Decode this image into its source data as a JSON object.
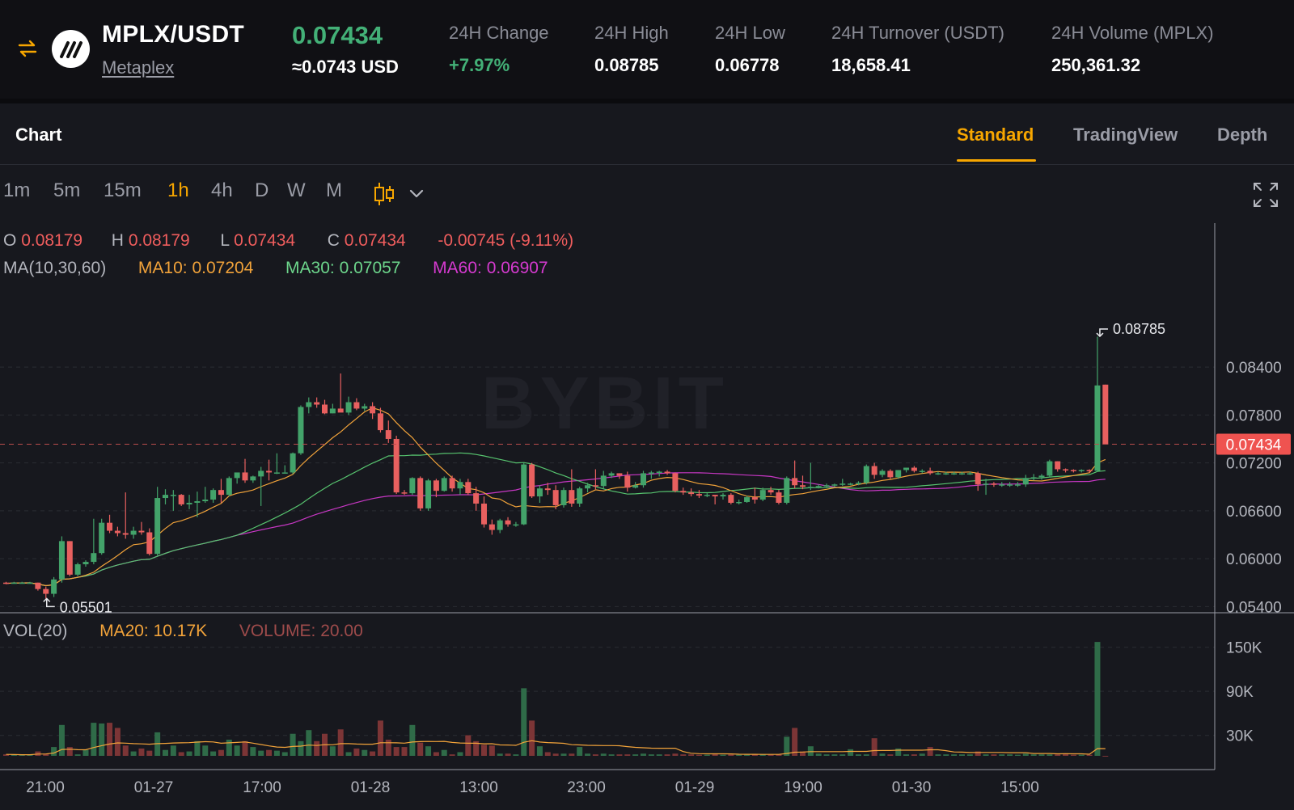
{
  "ticker": {
    "pair": "MPLX/USDT",
    "name": "Metaplex",
    "last_price": "0.07434",
    "usd_price": "≈0.0743 USD",
    "stats": [
      {
        "label": "24H Change",
        "value": "+7.97%"
      },
      {
        "label": "24H High",
        "value": "0.08785"
      },
      {
        "label": "24H Low",
        "value": "0.06778"
      },
      {
        "label": "24H Turnover (USDT)",
        "value": "18,658.41"
      },
      {
        "label": "24H Volume (MPLX)",
        "value": "250,361.32"
      }
    ],
    "icons": {
      "swap": "swap-arrows-icon",
      "logo": "metaplex-logo-icon"
    }
  },
  "chart_header": {
    "title": "Chart",
    "tabs": [
      "Standard",
      "TradingView",
      "Depth"
    ],
    "active_tab": "Standard"
  },
  "intervals": {
    "items": [
      "1m",
      "5m",
      "15m",
      "1h",
      "4h",
      "D",
      "W",
      "M"
    ],
    "active": "1h",
    "icons": [
      "candlestick-type-icon",
      "chevron-down-icon",
      "fullscreen-icon"
    ]
  },
  "legend": {
    "o_key": "O",
    "o_val": "0.08179",
    "h_key": "H",
    "h_val": "0.08179",
    "l_key": "L",
    "l_val": "0.07434",
    "c_key": "C",
    "c_val": "0.07434",
    "change": "-0.00745 (-9.11%)",
    "ma_title": "MA(10,30,60)",
    "ma10": "MA10: 0.07204",
    "ma30": "MA30: 0.07057",
    "ma60": "MA60: 0.06907",
    "vol_title": "VOL(20)",
    "vol_ma": "MA20: 10.17K",
    "vol_value": "VOLUME: 20.00"
  },
  "chart_data": {
    "type": "candlestick",
    "watermark": "BYBIT",
    "price_axis": {
      "ticks": [
        "0.08400",
        "0.07800",
        "0.07200",
        "0.06600",
        "0.06000",
        "0.05400"
      ],
      "ylim": [
        0.051,
        0.0915
      ]
    },
    "volume_axis": {
      "ticks": [
        "150K",
        "90K",
        "30K"
      ],
      "ylim": [
        0,
        165000
      ]
    },
    "time_axis": {
      "ticks": [
        "21:00",
        "01-27",
        "17:00",
        "01-28",
        "13:00",
        "23:00",
        "01-29",
        "19:00",
        "01-30",
        "15:00"
      ]
    },
    "current_price": "0.07434",
    "high_marker": "0.08785",
    "low_marker": "0.05501",
    "colors": {
      "up": "#43a36a",
      "down": "#e8605f",
      "ma10": "#f2a33a",
      "ma30": "#57c46f",
      "ma60": "#c737c4",
      "price_tag": "#ef5350"
    },
    "candles": [
      {
        "o": 0.057,
        "h": 0.0571,
        "l": 0.0568,
        "c": 0.0569,
        "v": 2000
      },
      {
        "o": 0.0569,
        "h": 0.0571,
        "l": 0.0569,
        "c": 0.057,
        "v": 1500
      },
      {
        "o": 0.057,
        "h": 0.0571,
        "l": 0.0569,
        "c": 0.057,
        "v": 1200
      },
      {
        "o": 0.057,
        "h": 0.0571,
        "l": 0.0569,
        "c": 0.057,
        "v": 1500
      },
      {
        "o": 0.057,
        "h": 0.057,
        "l": 0.056,
        "c": 0.0562,
        "v": 6000
      },
      {
        "o": 0.0562,
        "h": 0.0565,
        "l": 0.055,
        "c": 0.0556,
        "v": 3000
      },
      {
        "o": 0.0556,
        "h": 0.0577,
        "l": 0.0552,
        "c": 0.0574,
        "v": 12000
      },
      {
        "o": 0.0574,
        "h": 0.0628,
        "l": 0.057,
        "c": 0.0622,
        "v": 42000
      },
      {
        "o": 0.0622,
        "h": 0.0622,
        "l": 0.0578,
        "c": 0.058,
        "v": 12000
      },
      {
        "o": 0.058,
        "h": 0.0595,
        "l": 0.0578,
        "c": 0.0593,
        "v": 2000
      },
      {
        "o": 0.0593,
        "h": 0.0598,
        "l": 0.059,
        "c": 0.0596,
        "v": 8000
      },
      {
        "o": 0.0596,
        "h": 0.065,
        "l": 0.0593,
        "c": 0.0607,
        "v": 45000
      },
      {
        "o": 0.0607,
        "h": 0.065,
        "l": 0.0605,
        "c": 0.0645,
        "v": 44000
      },
      {
        "o": 0.0645,
        "h": 0.0655,
        "l": 0.0632,
        "c": 0.0635,
        "v": 45000
      },
      {
        "o": 0.0635,
        "h": 0.064,
        "l": 0.0628,
        "c": 0.0632,
        "v": 38000
      },
      {
        "o": 0.0632,
        "h": 0.0683,
        "l": 0.0625,
        "c": 0.063,
        "v": 14000
      },
      {
        "o": 0.063,
        "h": 0.064,
        "l": 0.0625,
        "c": 0.0635,
        "v": 6000
      },
      {
        "o": 0.0635,
        "h": 0.0646,
        "l": 0.063,
        "c": 0.0633,
        "v": 10000
      },
      {
        "o": 0.0633,
        "h": 0.0638,
        "l": 0.0604,
        "c": 0.0606,
        "v": 7000
      },
      {
        "o": 0.0606,
        "h": 0.069,
        "l": 0.0604,
        "c": 0.0676,
        "v": 32000
      },
      {
        "o": 0.0676,
        "h": 0.0687,
        "l": 0.0668,
        "c": 0.068,
        "v": 8000
      },
      {
        "o": 0.068,
        "h": 0.0686,
        "l": 0.066,
        "c": 0.068,
        "v": 14000
      },
      {
        "o": 0.068,
        "h": 0.0681,
        "l": 0.0666,
        "c": 0.0668,
        "v": 5000
      },
      {
        "o": 0.0668,
        "h": 0.068,
        "l": 0.0662,
        "c": 0.067,
        "v": 6000
      },
      {
        "o": 0.067,
        "h": 0.0684,
        "l": 0.0652,
        "c": 0.0672,
        "v": 20000
      },
      {
        "o": 0.0672,
        "h": 0.069,
        "l": 0.067,
        "c": 0.0674,
        "v": 14000
      },
      {
        "o": 0.0674,
        "h": 0.0688,
        "l": 0.067,
        "c": 0.0686,
        "v": 6000
      },
      {
        "o": 0.0686,
        "h": 0.07,
        "l": 0.067,
        "c": 0.068,
        "v": 8000
      },
      {
        "o": 0.068,
        "h": 0.0703,
        "l": 0.0678,
        "c": 0.0701,
        "v": 22000
      },
      {
        "o": 0.0701,
        "h": 0.0707,
        "l": 0.0694,
        "c": 0.0708,
        "v": 14000
      },
      {
        "o": 0.0708,
        "h": 0.0725,
        "l": 0.0695,
        "c": 0.0698,
        "v": 20000
      },
      {
        "o": 0.0698,
        "h": 0.0704,
        "l": 0.0695,
        "c": 0.0703,
        "v": 12000
      },
      {
        "o": 0.0703,
        "h": 0.0715,
        "l": 0.0666,
        "c": 0.071,
        "v": 7000
      },
      {
        "o": 0.071,
        "h": 0.0724,
        "l": 0.0698,
        "c": 0.0708,
        "v": 8000
      },
      {
        "o": 0.0708,
        "h": 0.0732,
        "l": 0.0706,
        "c": 0.0708,
        "v": 7000
      },
      {
        "o": 0.0708,
        "h": 0.0717,
        "l": 0.0708,
        "c": 0.0708,
        "v": 5000
      },
      {
        "o": 0.0708,
        "h": 0.0733,
        "l": 0.0706,
        "c": 0.0732,
        "v": 30000
      },
      {
        "o": 0.0732,
        "h": 0.0792,
        "l": 0.073,
        "c": 0.079,
        "v": 20000
      },
      {
        "o": 0.079,
        "h": 0.0802,
        "l": 0.0782,
        "c": 0.0796,
        "v": 35000
      },
      {
        "o": 0.0796,
        "h": 0.0802,
        "l": 0.0789,
        "c": 0.0793,
        "v": 20000
      },
      {
        "o": 0.0793,
        "h": 0.0799,
        "l": 0.0781,
        "c": 0.0782,
        "v": 30000
      },
      {
        "o": 0.0782,
        "h": 0.0794,
        "l": 0.0782,
        "c": 0.0788,
        "v": 13000
      },
      {
        "o": 0.0788,
        "h": 0.0832,
        "l": 0.0785,
        "c": 0.0783,
        "v": 36000
      },
      {
        "o": 0.0783,
        "h": 0.0803,
        "l": 0.078,
        "c": 0.0796,
        "v": 5000
      },
      {
        "o": 0.0796,
        "h": 0.0801,
        "l": 0.0786,
        "c": 0.0788,
        "v": 10000
      },
      {
        "o": 0.0788,
        "h": 0.0794,
        "l": 0.0785,
        "c": 0.0791,
        "v": 8000
      },
      {
        "o": 0.0791,
        "h": 0.0796,
        "l": 0.0775,
        "c": 0.0782,
        "v": 6000
      },
      {
        "o": 0.0782,
        "h": 0.0789,
        "l": 0.0758,
        "c": 0.0761,
        "v": 48000
      },
      {
        "o": 0.0761,
        "h": 0.0773,
        "l": 0.0745,
        "c": 0.075,
        "v": 22000
      },
      {
        "o": 0.075,
        "h": 0.0754,
        "l": 0.0681,
        "c": 0.0683,
        "v": 12000
      },
      {
        "o": 0.0683,
        "h": 0.0686,
        "l": 0.068,
        "c": 0.0682,
        "v": 12000
      },
      {
        "o": 0.0682,
        "h": 0.0702,
        "l": 0.068,
        "c": 0.0701,
        "v": 42000
      },
      {
        "o": 0.0701,
        "h": 0.0703,
        "l": 0.066,
        "c": 0.0663,
        "v": 18000
      },
      {
        "o": 0.0663,
        "h": 0.07,
        "l": 0.066,
        "c": 0.0698,
        "v": 13000
      },
      {
        "o": 0.0698,
        "h": 0.07,
        "l": 0.0677,
        "c": 0.0685,
        "v": 5000
      },
      {
        "o": 0.0685,
        "h": 0.0703,
        "l": 0.0684,
        "c": 0.0701,
        "v": 8000
      },
      {
        "o": 0.0701,
        "h": 0.0704,
        "l": 0.0684,
        "c": 0.0688,
        "v": 2000
      },
      {
        "o": 0.0688,
        "h": 0.07,
        "l": 0.068,
        "c": 0.0696,
        "v": 5000
      },
      {
        "o": 0.0696,
        "h": 0.07,
        "l": 0.068,
        "c": 0.0682,
        "v": 28000
      },
      {
        "o": 0.0682,
        "h": 0.069,
        "l": 0.066,
        "c": 0.0669,
        "v": 20000
      },
      {
        "o": 0.0669,
        "h": 0.0678,
        "l": 0.0639,
        "c": 0.0643,
        "v": 15000
      },
      {
        "o": 0.0643,
        "h": 0.0649,
        "l": 0.063,
        "c": 0.0636,
        "v": 14000
      },
      {
        "o": 0.0636,
        "h": 0.065,
        "l": 0.0632,
        "c": 0.0648,
        "v": 3000
      },
      {
        "o": 0.0648,
        "h": 0.0652,
        "l": 0.064,
        "c": 0.0643,
        "v": 3000
      },
      {
        "o": 0.0643,
        "h": 0.0646,
        "l": 0.064,
        "c": 0.0643,
        "v": 2000
      },
      {
        "o": 0.0643,
        "h": 0.072,
        "l": 0.0642,
        "c": 0.0718,
        "v": 92000
      },
      {
        "o": 0.0718,
        "h": 0.072,
        "l": 0.0676,
        "c": 0.0678,
        "v": 48000
      },
      {
        "o": 0.0678,
        "h": 0.0692,
        "l": 0.067,
        "c": 0.0688,
        "v": 13000
      },
      {
        "o": 0.0688,
        "h": 0.0695,
        "l": 0.068,
        "c": 0.0686,
        "v": 5000
      },
      {
        "o": 0.0686,
        "h": 0.0692,
        "l": 0.0662,
        "c": 0.0667,
        "v": 3000
      },
      {
        "o": 0.0667,
        "h": 0.0689,
        "l": 0.0664,
        "c": 0.0686,
        "v": 3000
      },
      {
        "o": 0.0686,
        "h": 0.0712,
        "l": 0.0665,
        "c": 0.0669,
        "v": 3000
      },
      {
        "o": 0.0669,
        "h": 0.069,
        "l": 0.0665,
        "c": 0.0688,
        "v": 12000
      },
      {
        "o": 0.0688,
        "h": 0.0695,
        "l": 0.0683,
        "c": 0.0692,
        "v": 3000
      },
      {
        "o": 0.0692,
        "h": 0.0712,
        "l": 0.0687,
        "c": 0.0691,
        "v": 2000
      },
      {
        "o": 0.0691,
        "h": 0.071,
        "l": 0.0688,
        "c": 0.0704,
        "v": 3000
      },
      {
        "o": 0.0704,
        "h": 0.0709,
        "l": 0.0701,
        "c": 0.0707,
        "v": 2000
      },
      {
        "o": 0.0707,
        "h": 0.0707,
        "l": 0.07,
        "c": 0.0704,
        "v": 2000
      },
      {
        "o": 0.0704,
        "h": 0.0709,
        "l": 0.0684,
        "c": 0.0689,
        "v": 2000
      },
      {
        "o": 0.0689,
        "h": 0.0696,
        "l": 0.0688,
        "c": 0.0692,
        "v": 2000
      },
      {
        "o": 0.0692,
        "h": 0.071,
        "l": 0.0689,
        "c": 0.0707,
        "v": 3000
      },
      {
        "o": 0.0707,
        "h": 0.071,
        "l": 0.07,
        "c": 0.0708,
        "v": 2000
      },
      {
        "o": 0.0708,
        "h": 0.071,
        "l": 0.0703,
        "c": 0.0709,
        "v": 2000
      },
      {
        "o": 0.0709,
        "h": 0.0711,
        "l": 0.0705,
        "c": 0.0707,
        "v": 2000
      },
      {
        "o": 0.0707,
        "h": 0.0708,
        "l": 0.0683,
        "c": 0.0685,
        "v": 3000
      },
      {
        "o": 0.0685,
        "h": 0.0689,
        "l": 0.068,
        "c": 0.0683,
        "v": 2000
      },
      {
        "o": 0.0683,
        "h": 0.0688,
        "l": 0.0678,
        "c": 0.0681,
        "v": 2000
      },
      {
        "o": 0.0681,
        "h": 0.0686,
        "l": 0.0676,
        "c": 0.0679,
        "v": 1500
      },
      {
        "o": 0.0679,
        "h": 0.0682,
        "l": 0.0677,
        "c": 0.068,
        "v": 1500
      },
      {
        "o": 0.068,
        "h": 0.068,
        "l": 0.0668,
        "c": 0.0678,
        "v": 3000
      },
      {
        "o": 0.0678,
        "h": 0.0682,
        "l": 0.0674,
        "c": 0.068,
        "v": 1500
      },
      {
        "o": 0.068,
        "h": 0.0682,
        "l": 0.0668,
        "c": 0.067,
        "v": 2000
      },
      {
        "o": 0.067,
        "h": 0.0674,
        "l": 0.0668,
        "c": 0.0671,
        "v": 1500
      },
      {
        "o": 0.0671,
        "h": 0.0679,
        "l": 0.067,
        "c": 0.0677,
        "v": 1500
      },
      {
        "o": 0.0677,
        "h": 0.0689,
        "l": 0.0669,
        "c": 0.0674,
        "v": 2000
      },
      {
        "o": 0.0674,
        "h": 0.0689,
        "l": 0.0672,
        "c": 0.0686,
        "v": 2000
      },
      {
        "o": 0.0686,
        "h": 0.069,
        "l": 0.068,
        "c": 0.0683,
        "v": 1500
      },
      {
        "o": 0.0683,
        "h": 0.0686,
        "l": 0.0668,
        "c": 0.067,
        "v": 2000
      },
      {
        "o": 0.067,
        "h": 0.0703,
        "l": 0.0668,
        "c": 0.0701,
        "v": 26000
      },
      {
        "o": 0.0701,
        "h": 0.0723,
        "l": 0.0688,
        "c": 0.0692,
        "v": 38000
      },
      {
        "o": 0.0692,
        "h": 0.0704,
        "l": 0.0687,
        "c": 0.069,
        "v": 6000
      },
      {
        "o": 0.069,
        "h": 0.072,
        "l": 0.0686,
        "c": 0.069,
        "v": 13000
      },
      {
        "o": 0.069,
        "h": 0.0693,
        "l": 0.0688,
        "c": 0.0691,
        "v": 3000
      },
      {
        "o": 0.0691,
        "h": 0.0694,
        "l": 0.0689,
        "c": 0.0692,
        "v": 2000
      },
      {
        "o": 0.0692,
        "h": 0.0694,
        "l": 0.069,
        "c": 0.0693,
        "v": 2000
      },
      {
        "o": 0.0693,
        "h": 0.07,
        "l": 0.0691,
        "c": 0.0694,
        "v": 2000
      },
      {
        "o": 0.0694,
        "h": 0.0695,
        "l": 0.0692,
        "c": 0.0694,
        "v": 9000
      },
      {
        "o": 0.0694,
        "h": 0.0697,
        "l": 0.0692,
        "c": 0.0695,
        "v": 2000
      },
      {
        "o": 0.0695,
        "h": 0.0718,
        "l": 0.0693,
        "c": 0.0716,
        "v": 2000
      },
      {
        "o": 0.0716,
        "h": 0.072,
        "l": 0.07,
        "c": 0.0705,
        "v": 24000
      },
      {
        "o": 0.0705,
        "h": 0.0712,
        "l": 0.0702,
        "c": 0.071,
        "v": 3000
      },
      {
        "o": 0.071,
        "h": 0.0712,
        "l": 0.07,
        "c": 0.0702,
        "v": 2000
      },
      {
        "o": 0.0702,
        "h": 0.0711,
        "l": 0.07,
        "c": 0.0711,
        "v": 10000
      },
      {
        "o": 0.0711,
        "h": 0.0714,
        "l": 0.0708,
        "c": 0.0714,
        "v": 2000
      },
      {
        "o": 0.0714,
        "h": 0.0716,
        "l": 0.0708,
        "c": 0.071,
        "v": 2000
      },
      {
        "o": 0.071,
        "h": 0.0712,
        "l": 0.0707,
        "c": 0.071,
        "v": 3000
      },
      {
        "o": 0.071,
        "h": 0.0714,
        "l": 0.0705,
        "c": 0.0707,
        "v": 12000
      },
      {
        "o": 0.0707,
        "h": 0.0709,
        "l": 0.0705,
        "c": 0.0707,
        "v": 2000
      },
      {
        "o": 0.0707,
        "h": 0.0709,
        "l": 0.0705,
        "c": 0.0707,
        "v": 2000
      },
      {
        "o": 0.0707,
        "h": 0.0709,
        "l": 0.0705,
        "c": 0.0707,
        "v": 2000
      },
      {
        "o": 0.0707,
        "h": 0.0709,
        "l": 0.0705,
        "c": 0.0707,
        "v": 2000
      },
      {
        "o": 0.0707,
        "h": 0.0709,
        "l": 0.0705,
        "c": 0.0707,
        "v": 2000
      },
      {
        "o": 0.0707,
        "h": 0.0709,
        "l": 0.0685,
        "c": 0.0693,
        "v": 6000
      },
      {
        "o": 0.0693,
        "h": 0.07,
        "l": 0.068,
        "c": 0.0694,
        "v": 2000
      },
      {
        "o": 0.0694,
        "h": 0.0696,
        "l": 0.069,
        "c": 0.0693,
        "v": 2000
      },
      {
        "o": 0.0693,
        "h": 0.0696,
        "l": 0.069,
        "c": 0.0693,
        "v": 2000
      },
      {
        "o": 0.0693,
        "h": 0.0696,
        "l": 0.069,
        "c": 0.0693,
        "v": 2000
      },
      {
        "o": 0.0693,
        "h": 0.0696,
        "l": 0.069,
        "c": 0.0693,
        "v": 1500
      },
      {
        "o": 0.0693,
        "h": 0.0705,
        "l": 0.069,
        "c": 0.0701,
        "v": 3000
      },
      {
        "o": 0.0701,
        "h": 0.0706,
        "l": 0.0698,
        "c": 0.0702,
        "v": 2000
      },
      {
        "o": 0.0702,
        "h": 0.0706,
        "l": 0.0699,
        "c": 0.0704,
        "v": 2000
      },
      {
        "o": 0.0704,
        "h": 0.0724,
        "l": 0.0702,
        "c": 0.0722,
        "v": 2000
      },
      {
        "o": 0.0722,
        "h": 0.0722,
        "l": 0.0709,
        "c": 0.0712,
        "v": 2000
      },
      {
        "o": 0.0712,
        "h": 0.0713,
        "l": 0.0708,
        "c": 0.0711,
        "v": 3000
      },
      {
        "o": 0.0711,
        "h": 0.0712,
        "l": 0.0708,
        "c": 0.071,
        "v": 1500
      },
      {
        "o": 0.071,
        "h": 0.0712,
        "l": 0.0708,
        "c": 0.0711,
        "v": 1500
      },
      {
        "o": 0.0711,
        "h": 0.0712,
        "l": 0.0708,
        "c": 0.071,
        "v": 1500
      },
      {
        "o": 0.071,
        "h": 0.0878,
        "l": 0.0709,
        "c": 0.0817,
        "v": 155000
      },
      {
        "o": 0.0818,
        "h": 0.0818,
        "l": 0.0743,
        "c": 0.0743,
        "v": 20
      }
    ]
  }
}
